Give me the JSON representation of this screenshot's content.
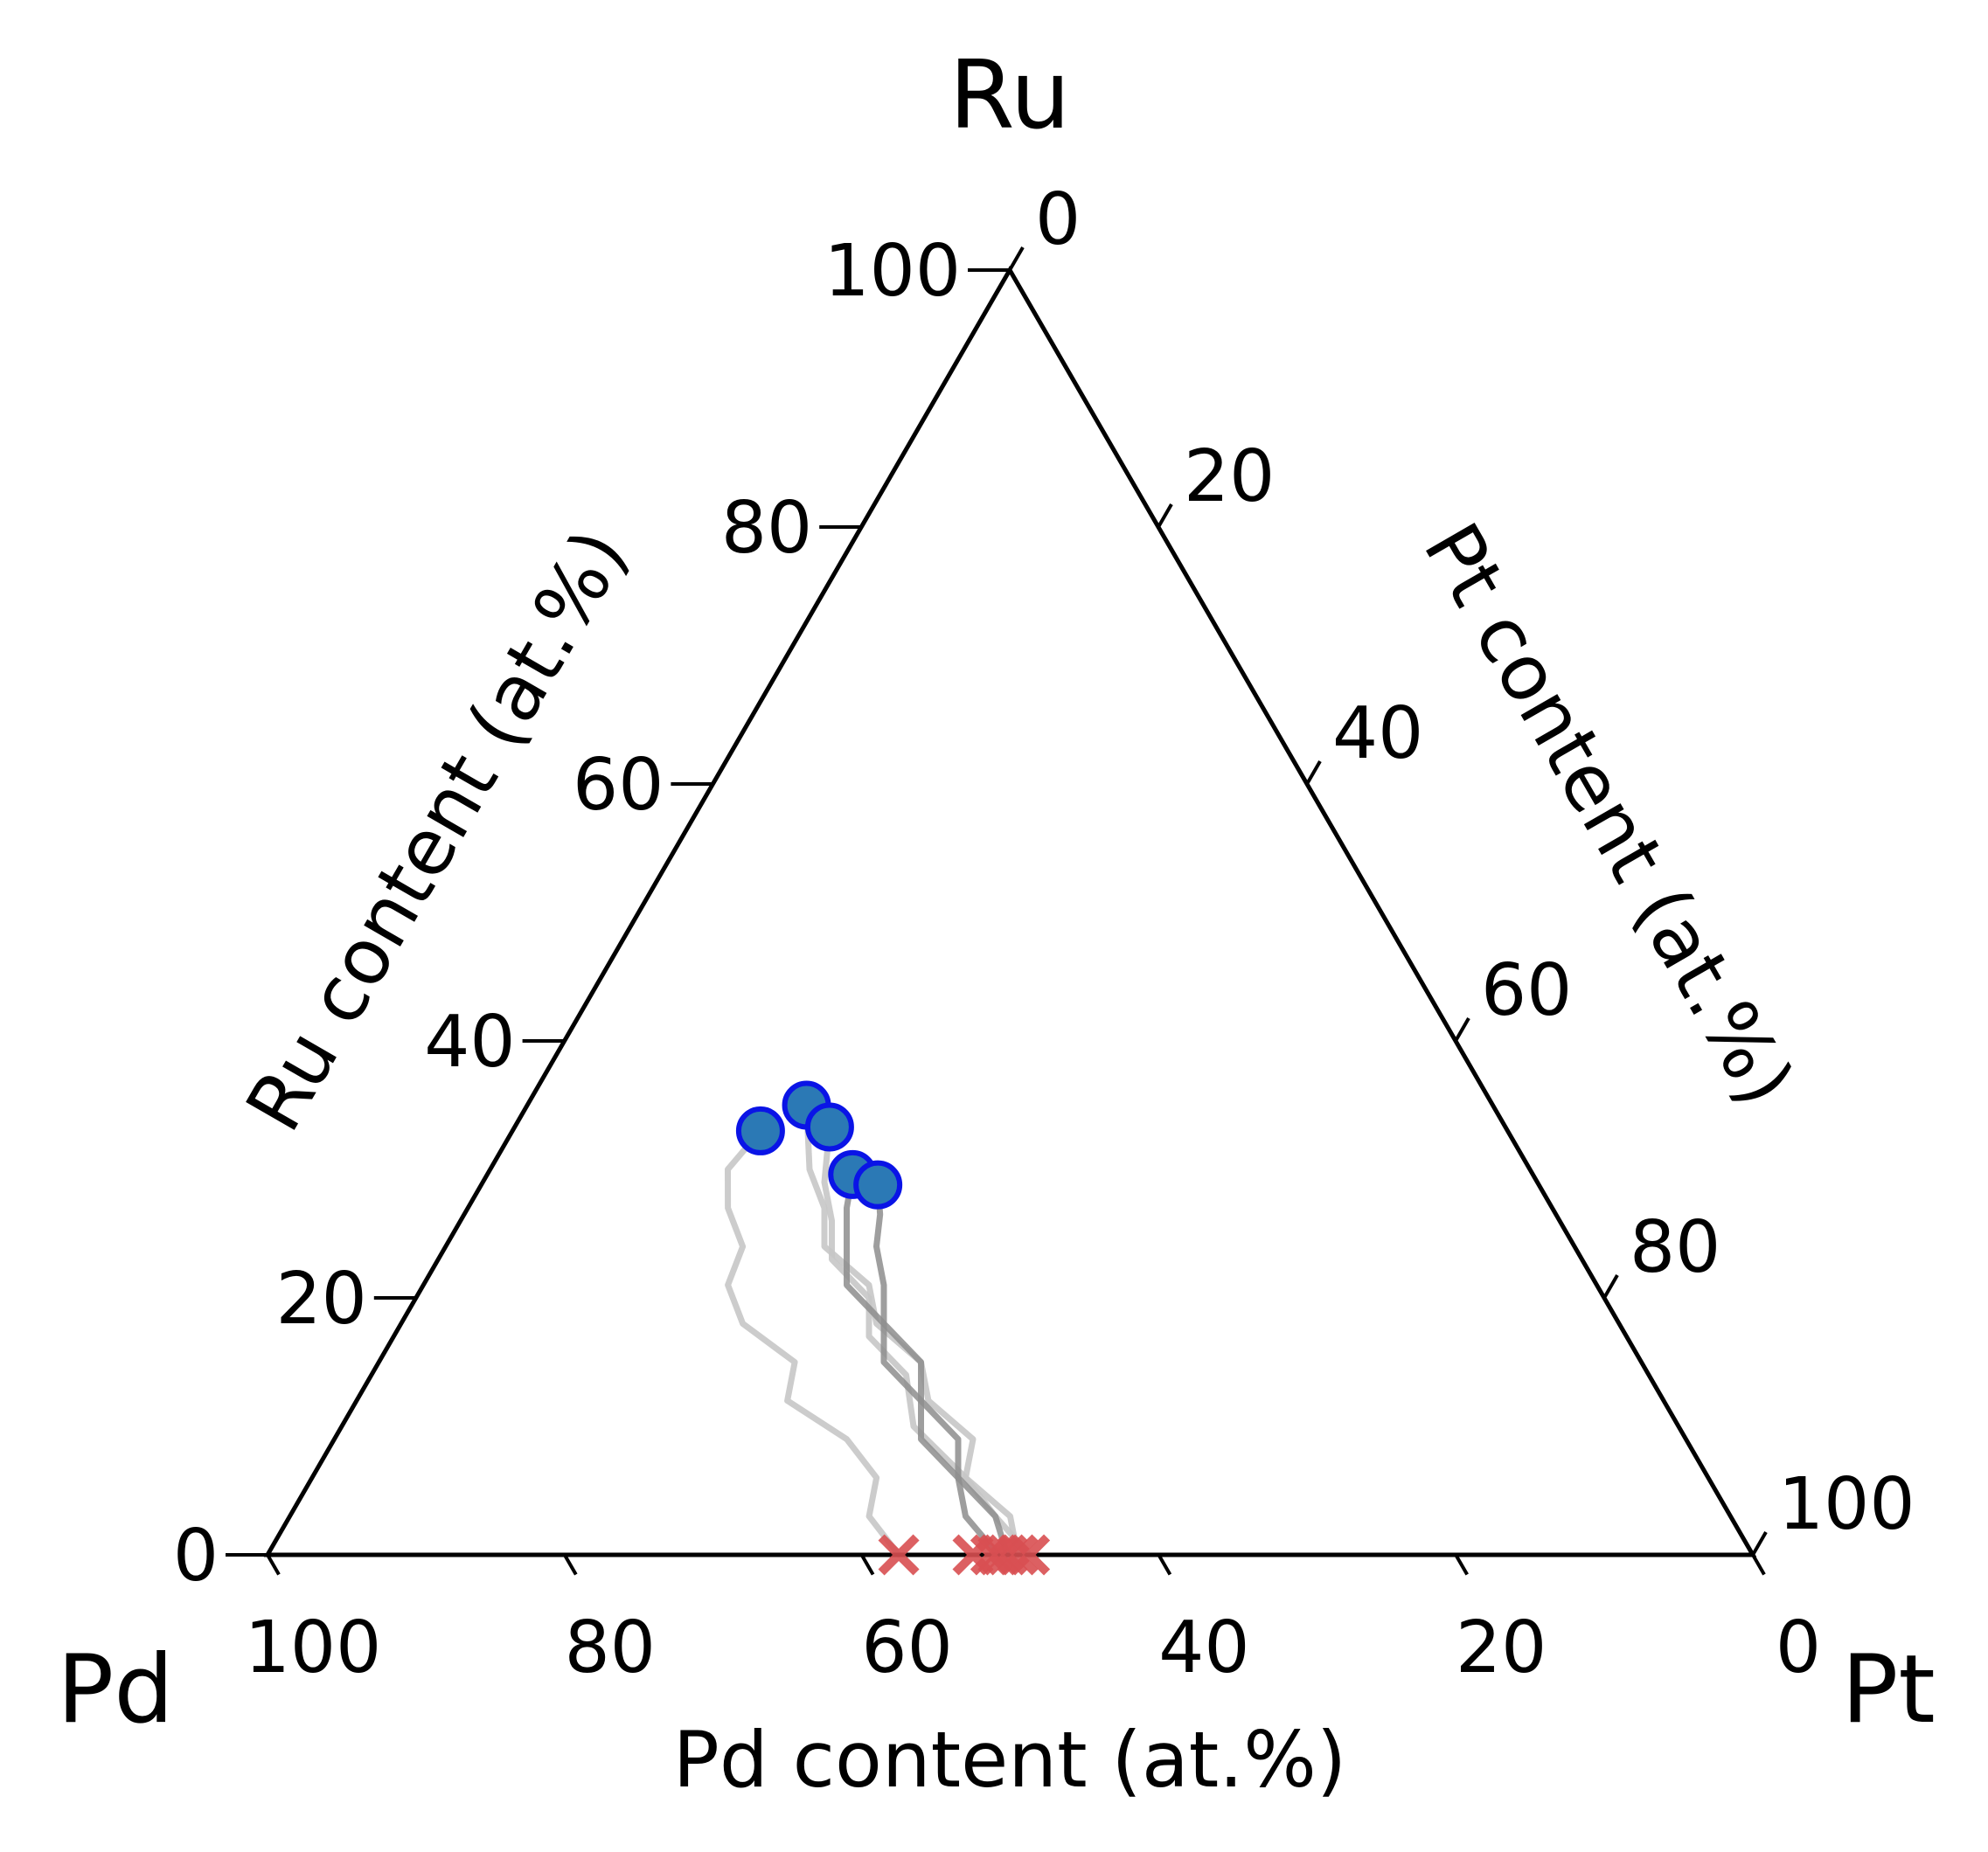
{
  "chart_data": {
    "type": "scatter",
    "subtype": "ternary",
    "corners": {
      "left": "Pd",
      "top": "Ru",
      "right": "Pt"
    },
    "axes": {
      "left": {
        "title": "Ru content (at.%)",
        "component": "Ru",
        "ticks": [
          0,
          20,
          40,
          60,
          80,
          100
        ]
      },
      "right": {
        "title": "Pt content (at.%)",
        "component": "Pt",
        "ticks": [
          0,
          20,
          40,
          60,
          80,
          100
        ]
      },
      "bottom": {
        "title": "Pd content (at.%)",
        "component": "Pd",
        "ticks": [
          100,
          80,
          60,
          40,
          20,
          0
        ]
      }
    },
    "grid": false,
    "legend": "none",
    "colors": {
      "end_marker_fill": "#2b79b5",
      "end_marker_edge": "#0a14e6",
      "start_marker": "#d94f52",
      "trajectory_light": "#c6c6c6",
      "trajectory_dark": "#8d8d8d"
    },
    "start_points": [
      {
        "Pd": 57.5,
        "Pt": 42.5,
        "Ru": 0
      },
      {
        "Pd": 52.5,
        "Pt": 47.5,
        "Ru": 0
      },
      {
        "Pd": 51.3,
        "Pt": 48.7,
        "Ru": 0
      },
      {
        "Pd": 50.8,
        "Pt": 49.2,
        "Ru": 0
      },
      {
        "Pd": 50.2,
        "Pt": 49.8,
        "Ru": 0
      },
      {
        "Pd": 49.5,
        "Pt": 50.5,
        "Ru": 0
      },
      {
        "Pd": 48.7,
        "Pt": 51.3,
        "Ru": 0
      }
    ],
    "end_points": [
      {
        "Pd": 50.3,
        "Pt": 16.7,
        "Ru": 33.0
      },
      {
        "Pd": 46.2,
        "Pt": 18.8,
        "Ru": 35.0
      },
      {
        "Pd": 45.5,
        "Pt": 21.2,
        "Ru": 33.3
      },
      {
        "Pd": 45.8,
        "Pt": 24.6,
        "Ru": 29.6
      },
      {
        "Pd": 44.5,
        "Pt": 26.7,
        "Ru": 28.8
      }
    ],
    "trajectories": [
      {
        "shade": "light",
        "points": [
          {
            "Ru": 0,
            "Pd": 57.5,
            "Pt": 42.5
          },
          {
            "Ru": 3,
            "Pd": 58,
            "Pt": 39
          },
          {
            "Ru": 6,
            "Pd": 56,
            "Pt": 38
          },
          {
            "Ru": 9,
            "Pd": 56.5,
            "Pt": 34.5
          },
          {
            "Ru": 12,
            "Pd": 59,
            "Pt": 29
          },
          {
            "Ru": 15,
            "Pd": 57,
            "Pt": 28
          },
          {
            "Ru": 18,
            "Pd": 59,
            "Pt": 23
          },
          {
            "Ru": 21,
            "Pd": 58.5,
            "Pt": 20.5
          },
          {
            "Ru": 24,
            "Pd": 56,
            "Pt": 20
          },
          {
            "Ru": 27,
            "Pd": 55.5,
            "Pt": 17.5
          },
          {
            "Ru": 30,
            "Pd": 54,
            "Pt": 16
          },
          {
            "Ru": 33,
            "Pd": 50.3,
            "Pt": 16.7
          }
        ]
      },
      {
        "shade": "light",
        "points": [
          {
            "Ru": 0,
            "Pd": 49.5,
            "Pt": 50.5
          },
          {
            "Ru": 3,
            "Pd": 48.5,
            "Pt": 48.5
          },
          {
            "Ru": 6,
            "Pd": 50,
            "Pt": 44
          },
          {
            "Ru": 9,
            "Pd": 48,
            "Pt": 43
          },
          {
            "Ru": 12,
            "Pd": 49.5,
            "Pt": 38.5
          },
          {
            "Ru": 15,
            "Pd": 48.5,
            "Pt": 36.5
          },
          {
            "Ru": 18,
            "Pd": 50,
            "Pt": 32
          },
          {
            "Ru": 21,
            "Pd": 49,
            "Pt": 30
          },
          {
            "Ru": 24,
            "Pd": 50.5,
            "Pt": 25.5
          },
          {
            "Ru": 27,
            "Pd": 49,
            "Pt": 24
          },
          {
            "Ru": 30,
            "Pd": 48.5,
            "Pt": 21.5
          },
          {
            "Ru": 35,
            "Pd": 46.2,
            "Pt": 18.8
          }
        ]
      },
      {
        "shade": "light",
        "points": [
          {
            "Ru": 0,
            "Pd": 48.7,
            "Pt": 51.3
          },
          {
            "Ru": 3,
            "Pd": 49.5,
            "Pt": 47.5
          },
          {
            "Ru": 6,
            "Pd": 50,
            "Pt": 44
          },
          {
            "Ru": 10,
            "Pd": 51.5,
            "Pt": 38.5
          },
          {
            "Ru": 14,
            "Pd": 50,
            "Pt": 36
          },
          {
            "Ru": 17,
            "Pd": 51,
            "Pt": 32
          },
          {
            "Ru": 20,
            "Pd": 49.5,
            "Pt": 30.5
          },
          {
            "Ru": 23,
            "Pd": 50.5,
            "Pt": 26.5
          },
          {
            "Ru": 26,
            "Pd": 49,
            "Pt": 25
          },
          {
            "Ru": 29,
            "Pd": 48,
            "Pt": 23
          },
          {
            "Ru": 33.3,
            "Pd": 45.5,
            "Pt": 21.2
          }
        ]
      },
      {
        "shade": "dark",
        "points": [
          {
            "Ru": 0,
            "Pd": 50.8,
            "Pt": 49.2
          },
          {
            "Ru": 3,
            "Pd": 51.5,
            "Pt": 45.5
          },
          {
            "Ru": 6,
            "Pd": 50.5,
            "Pt": 43.5
          },
          {
            "Ru": 9,
            "Pd": 51.5,
            "Pt": 39.5
          },
          {
            "Ru": 12,
            "Pd": 50,
            "Pt": 38
          },
          {
            "Ru": 15,
            "Pd": 51,
            "Pt": 34
          },
          {
            "Ru": 18,
            "Pd": 49.5,
            "Pt": 32.5
          },
          {
            "Ru": 21,
            "Pd": 50.5,
            "Pt": 28.5
          },
          {
            "Ru": 24,
            "Pd": 49,
            "Pt": 27
          },
          {
            "Ru": 27,
            "Pd": 47.5,
            "Pt": 25.5
          },
          {
            "Ru": 29.6,
            "Pd": 45.8,
            "Pt": 24.6
          }
        ]
      },
      {
        "shade": "dark",
        "points": [
          {
            "Ru": 0,
            "Pd": 50.2,
            "Pt": 49.8
          },
          {
            "Ru": 3,
            "Pd": 49.5,
            "Pt": 47.5
          },
          {
            "Ru": 6,
            "Pd": 50.5,
            "Pt": 43.5
          },
          {
            "Ru": 9,
            "Pd": 49,
            "Pt": 42
          },
          {
            "Ru": 12,
            "Pd": 50,
            "Pt": 38
          },
          {
            "Ru": 15,
            "Pd": 48.5,
            "Pt": 36.5
          },
          {
            "Ru": 18,
            "Pd": 49.5,
            "Pt": 32.5
          },
          {
            "Ru": 21,
            "Pd": 48,
            "Pt": 31
          },
          {
            "Ru": 24,
            "Pd": 47,
            "Pt": 29
          },
          {
            "Ru": 26.5,
            "Pd": 45.5,
            "Pt": 28
          },
          {
            "Ru": 28.8,
            "Pd": 44.5,
            "Pt": 26.7
          }
        ]
      }
    ]
  }
}
